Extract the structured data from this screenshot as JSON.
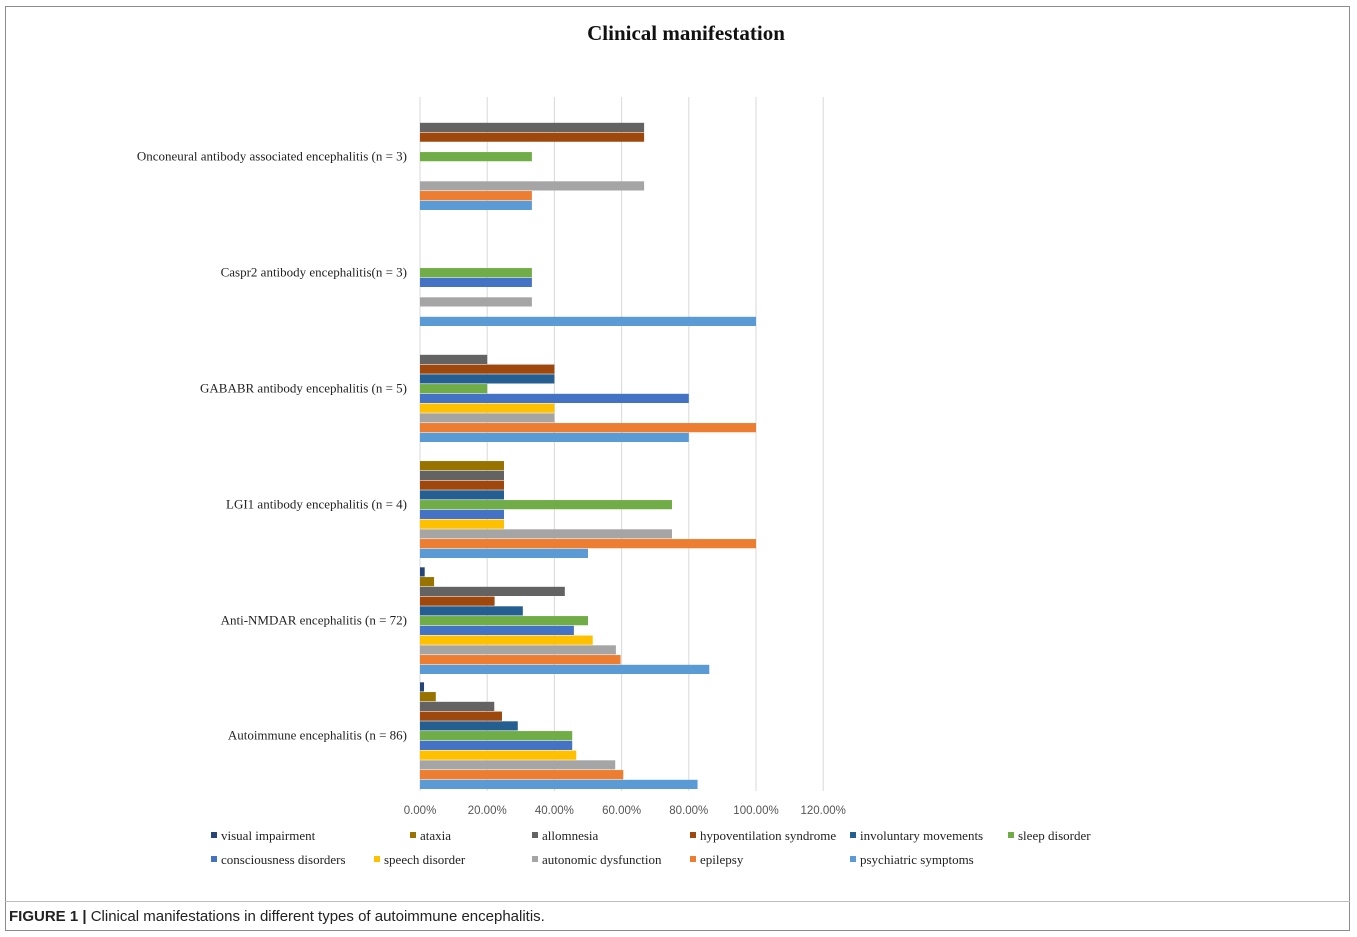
{
  "caption": {
    "label": "FIGURE 1 |",
    "text": " Clinical manifestations in different types of autoimmune encephalitis."
  },
  "chart_data": {
    "type": "bar",
    "orientation": "horizontal",
    "title": "Clinical manifestation",
    "xlabel": "",
    "ylabel": "",
    "xlim": [
      0,
      120
    ],
    "x_ticks": [
      "0.00%",
      "20.00%",
      "40.00%",
      "60.00%",
      "80.00%",
      "100.00%",
      "120.00%"
    ],
    "grid": "vertical gridlines",
    "legend_position": "bottom",
    "categories": [
      "Autoimmune encephalitis (n = 86)",
      "Anti-NMDAR encephalitis (n = 72)",
      "LGI1 antibody encephalitis (n = 4)",
      "GABABR antibody encephalitis (n = 5)",
      "Caspr2 antibody encephalitis(n = 3)",
      "Onconeural antibody associated encephalitis (n = 3)"
    ],
    "series": [
      {
        "name": "psychiatric symptoms",
        "color": "#5b9bd5",
        "values": [
          82.6,
          86.1,
          50.0,
          80.0,
          100.0,
          33.3
        ]
      },
      {
        "name": "epilepsy",
        "color": "#ed7d31",
        "values": [
          60.5,
          59.7,
          100.0,
          100.0,
          0,
          33.3
        ]
      },
      {
        "name": "autonomic dysfunction",
        "color": "#a5a5a5",
        "values": [
          58.1,
          58.3,
          75.0,
          40.0,
          33.3,
          66.7
        ]
      },
      {
        "name": "speech disorder",
        "color": "#ffc000",
        "values": [
          46.5,
          51.4,
          25.0,
          40.0,
          0,
          0
        ]
      },
      {
        "name": "consciousness disorders",
        "color": "#4472c4",
        "values": [
          45.3,
          45.8,
          25.0,
          80.0,
          33.3,
          0
        ]
      },
      {
        "name": "sleep disorder",
        "color": "#70ad47",
        "values": [
          45.3,
          50.0,
          75.0,
          20.0,
          33.3,
          33.3
        ]
      },
      {
        "name": "involuntary movements",
        "color": "#255e91",
        "values": [
          29.1,
          30.6,
          25.0,
          40.0,
          0,
          0
        ]
      },
      {
        "name": "hypoventilation syndrome",
        "color": "#9e480e",
        "values": [
          24.4,
          22.2,
          25.0,
          40.0,
          0,
          66.7
        ]
      },
      {
        "name": "allomnesia",
        "color": "#636363",
        "values": [
          22.1,
          43.1,
          25.0,
          20.0,
          0,
          66.7
        ]
      },
      {
        "name": "ataxia",
        "color": "#997300",
        "values": [
          4.7,
          4.2,
          25.0,
          0,
          0,
          0
        ]
      },
      {
        "name": "visual impairment",
        "color": "#264478",
        "values": [
          1.2,
          1.4,
          0,
          0,
          0,
          0
        ]
      }
    ],
    "legend_order": [
      "visual impairment",
      "ataxia",
      "allomnesia",
      "hypoventilation syndrome",
      "involuntary movements",
      "sleep disorder",
      "consciousness disorders",
      "speech disorder",
      "autonomic dysfunction",
      "epilepsy",
      "psychiatric symptoms"
    ]
  }
}
